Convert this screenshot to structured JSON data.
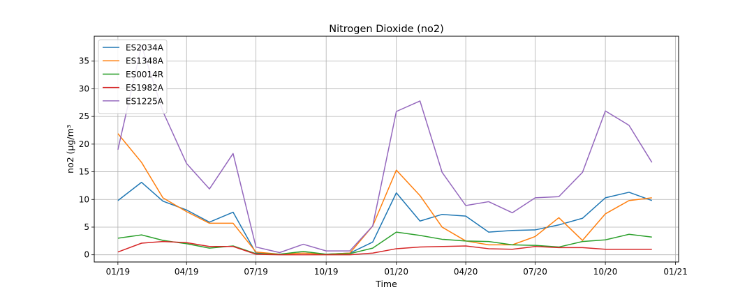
{
  "chart_data": {
    "type": "line",
    "title": "Nitrogen Dioxide (no2)",
    "xlabel": "Time",
    "ylabel": "no2 (µg/m³",
    "x": [
      "2019-01",
      "2019-02",
      "2019-03",
      "2019-04",
      "2019-05",
      "2019-06",
      "2019-07",
      "2019-08",
      "2019-09",
      "2019-10",
      "2019-11",
      "2019-12",
      "2020-01",
      "2020-02",
      "2020-03",
      "2020-04",
      "2020-05",
      "2020-06",
      "2020-07",
      "2020-08",
      "2020-09",
      "2020-10",
      "2020-11",
      "2020-12"
    ],
    "x_ticks": [
      "01/19",
      "04/19",
      "07/19",
      "10/19",
      "01/20",
      "04/20",
      "07/20",
      "10/20",
      "01/21"
    ],
    "y_ticks": [
      "0",
      "5",
      "10",
      "15",
      "20",
      "25",
      "30",
      "35"
    ],
    "ylim": [
      -1.3,
      39.5
    ],
    "xlim": [
      "2018-12-01",
      "2021-01-05"
    ],
    "grid": true,
    "legend_position": "top-left",
    "series": [
      {
        "name": "ES2034A",
        "color": "#1f77b4",
        "values": [
          9.8,
          13.1,
          9.7,
          8.1,
          5.9,
          7.7,
          0.3,
          0.1,
          0.3,
          0.1,
          0.3,
          2.3,
          11.2,
          6.1,
          7.3,
          7.0,
          4.1,
          4.4,
          4.5,
          5.4,
          6.6,
          10.3,
          11.3,
          9.8
        ]
      },
      {
        "name": "ES1348A",
        "color": "#ff7f0e",
        "values": [
          21.9,
          16.7,
          10.3,
          7.8,
          5.7,
          5.7,
          0.5,
          0.1,
          0.3,
          0.1,
          0.3,
          5.2,
          15.3,
          10.7,
          5.0,
          2.5,
          1.8,
          1.8,
          3.3,
          6.7,
          2.6,
          7.4,
          9.8,
          10.3
        ]
      },
      {
        "name": "ES0014R",
        "color": "#2ca02c",
        "values": [
          3.0,
          3.6,
          2.6,
          2.0,
          1.2,
          1.6,
          0.2,
          0.1,
          0.6,
          0.1,
          0.2,
          1.2,
          4.1,
          3.5,
          2.8,
          2.5,
          2.4,
          1.8,
          1.7,
          1.4,
          2.4,
          2.7,
          3.7,
          3.2
        ]
      },
      {
        "name": "ES1982A",
        "color": "#d62728",
        "values": [
          0.5,
          2.1,
          2.4,
          2.2,
          1.5,
          1.5,
          0.1,
          0.0,
          0.0,
          0.0,
          0.0,
          0.3,
          1.1,
          1.4,
          1.5,
          1.6,
          1.1,
          1.0,
          1.5,
          1.3,
          1.3,
          1.0,
          1.0,
          1.0
        ]
      },
      {
        "name": "ES1225A",
        "color": "#9467bd",
        "values": [
          19.0,
          37.8,
          25.9,
          16.5,
          11.9,
          18.3,
          1.4,
          0.4,
          1.9,
          0.7,
          0.7,
          5.2,
          25.9,
          27.8,
          14.9,
          8.9,
          9.6,
          7.6,
          10.3,
          10.5,
          14.9,
          26.0,
          23.4,
          16.7
        ]
      }
    ]
  }
}
